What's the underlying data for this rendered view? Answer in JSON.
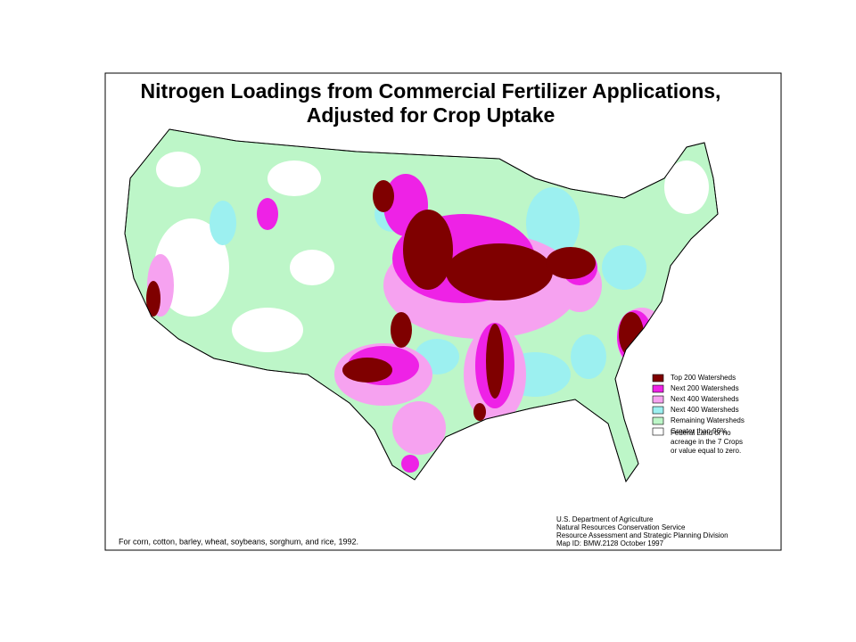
{
  "title": [
    "Nitrogen Loadings from Commercial Fertilizer Applications,",
    "Adjusted for Crop Uptake"
  ],
  "legend": [
    {
      "label": "Top 200 Watersheds",
      "color": "#7f0000"
    },
    {
      "label": "Next 200 Watersheds",
      "color": "#ee22e6"
    },
    {
      "label": "Next 400 Watersheds",
      "color": "#f6a2f0"
    },
    {
      "label": "Next 400 Watersheds",
      "color": "#9cf0f0"
    },
    {
      "label": "Remaining Watersheds",
      "color": "#bdf6c8"
    },
    {
      "label": "Greater than 96%",
      "color": "#ffffff"
    }
  ],
  "legend_note": [
    "Federal Land or no",
    "acreage in the 7 Crops",
    "or value equal to zero."
  ],
  "footnote": "For corn, cotton, barley, wheat, soybeans, sorghum, and rice, 1992.",
  "credits": [
    "U.S. Department of Agriculture",
    "Natural Resources Conservation Service",
    "Resource Assessment and Strategic Planning Division",
    "Map ID: BMW.2128    October 1997"
  ]
}
